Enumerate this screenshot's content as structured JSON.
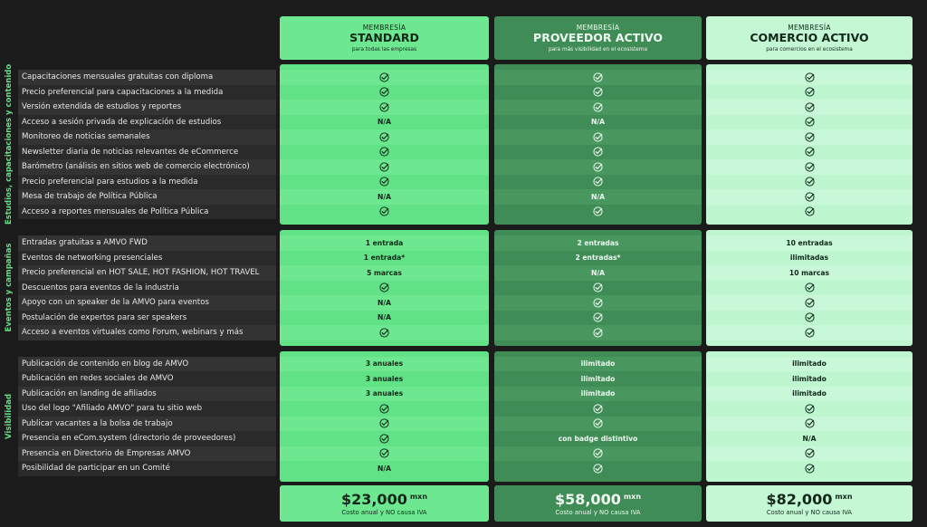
{
  "plans": [
    {
      "label": "MEMBRESÍA",
      "name": "STANDARD",
      "subtitle": "para todas las empresas",
      "price": "$23,000",
      "currency": "mxn",
      "note": "Costo anual y NO causa IVA"
    },
    {
      "label": "MEMBRESÍA",
      "name": "PROVEEDOR ACTIVO",
      "subtitle": "para más visibilidad en el ecosistema",
      "price": "$58,000",
      "currency": "mxn",
      "note": "Costo anual y NO causa IVA"
    },
    {
      "label": "MEMBRESÍA",
      "name": "COMERCIO ACTIVO",
      "subtitle": "para comercios en el ecosistema",
      "price": "$82,000",
      "currency": "mxn",
      "note": "Costo anual y NO causa IVA"
    }
  ],
  "sections": [
    {
      "title": "Estudios, capacitaciones y contenido",
      "rows": [
        {
          "feature": "Capacitaciones mensuales gratuitas con diploma",
          "values": [
            true,
            true,
            true
          ]
        },
        {
          "feature": "Precio preferencial para capacitaciones a la medida",
          "values": [
            true,
            true,
            true
          ]
        },
        {
          "feature": "Versión extendida de estudios y reportes",
          "values": [
            true,
            true,
            true
          ]
        },
        {
          "feature": "Acceso a sesión privada de explicación de estudios",
          "values": [
            "N/A",
            "N/A",
            true
          ]
        },
        {
          "feature": "Monitoreo de noticias semanales",
          "values": [
            true,
            true,
            true
          ]
        },
        {
          "feature": "Newsletter diaria de noticias relevantes de eCommerce",
          "values": [
            true,
            true,
            true
          ]
        },
        {
          "feature": "Barómetro (análisis en sitios web de comercio electrónico)",
          "values": [
            true,
            true,
            true
          ]
        },
        {
          "feature": "Precio preferencial para estudios a la medida",
          "values": [
            true,
            true,
            true
          ]
        },
        {
          "feature": "Mesa de trabajo de Política Pública",
          "values": [
            "N/A",
            "N/A",
            true
          ]
        },
        {
          "feature": "Acceso a reportes mensuales de Política Pública",
          "values": [
            true,
            true,
            true
          ]
        }
      ]
    },
    {
      "title": "Eventos y campañas",
      "rows": [
        {
          "feature": "Entradas gratuitas a AMVO FWD",
          "values": [
            "1 entrada",
            "2 entradas",
            "10 entradas"
          ]
        },
        {
          "feature": "Eventos de networking presenciales",
          "values": [
            "1 entrada*",
            "2 entradas*",
            "ilimitadas"
          ]
        },
        {
          "feature": "Precio preferencial en HOT SALE, HOT FASHION, HOT TRAVEL",
          "values": [
            "5 marcas",
            "N/A",
            "10 marcas"
          ]
        },
        {
          "feature": "Descuentos para eventos de la industria",
          "values": [
            true,
            true,
            true
          ]
        },
        {
          "feature": "Apoyo con un speaker de la AMVO para eventos",
          "values": [
            "N/A",
            true,
            true
          ]
        },
        {
          "feature": "Postulación de expertos para ser speakers",
          "values": [
            "N/A",
            true,
            true
          ]
        },
        {
          "feature": "Acceso a eventos virtuales como Forum, webinars y más",
          "values": [
            true,
            true,
            true
          ]
        }
      ]
    },
    {
      "title": "Visibilidad",
      "rows": [
        {
          "feature": "Publicación de contenido en blog de AMVO",
          "values": [
            "3 anuales",
            "ilimitado",
            "ilimitado"
          ]
        },
        {
          "feature": "Publicación en redes sociales de AMVO",
          "values": [
            "3 anuales",
            "ilimitado",
            "ilimitado"
          ]
        },
        {
          "feature": "Publicación en landing de afiliados",
          "values": [
            "3 anuales",
            "ilimitado",
            "ilimitado"
          ]
        },
        {
          "feature": "Uso del logo \"Afiliado AMVO\" para tu sitio web",
          "values": [
            true,
            true,
            true
          ]
        },
        {
          "feature": "Publicar vacantes a la bolsa de trabajo",
          "values": [
            true,
            true,
            true
          ]
        },
        {
          "feature": "Presencia en eCom.system (directorio de proveedores)",
          "values": [
            true,
            "con badge distintivo",
            "N/A"
          ]
        },
        {
          "feature": "Presencia en Directorio de Empresas AMVO",
          "values": [
            true,
            true,
            true
          ]
        },
        {
          "feature": "Posibilidad de participar en un Comité",
          "values": [
            "N/A",
            true,
            true
          ]
        }
      ]
    }
  ]
}
